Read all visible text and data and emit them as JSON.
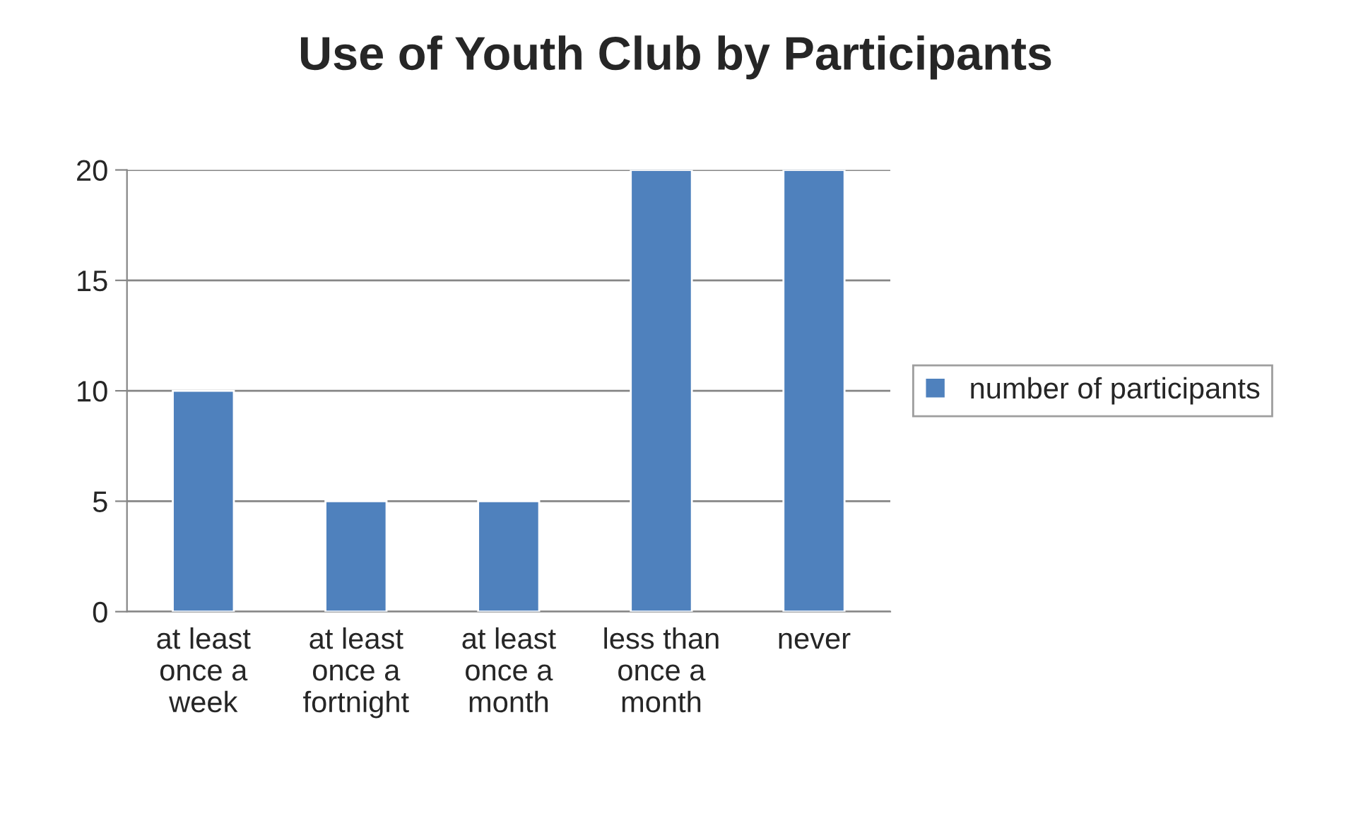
{
  "chart_data": {
    "type": "bar",
    "title": "Use of Youth Club by Participants",
    "categories": [
      "at least\nonce a\nweek",
      "at least\nonce a\nfortnight",
      "at least\nonce a\nmonth",
      "less than\nonce a\nmonth",
      "never"
    ],
    "series": [
      {
        "name": "number of participants",
        "color": "#4f81bd",
        "values": [
          10,
          5,
          5,
          20,
          20
        ]
      }
    ],
    "ylim": [
      0,
      20
    ],
    "yticks": [
      0,
      5,
      10,
      15,
      20
    ],
    "grid": "y",
    "legend": "right"
  }
}
